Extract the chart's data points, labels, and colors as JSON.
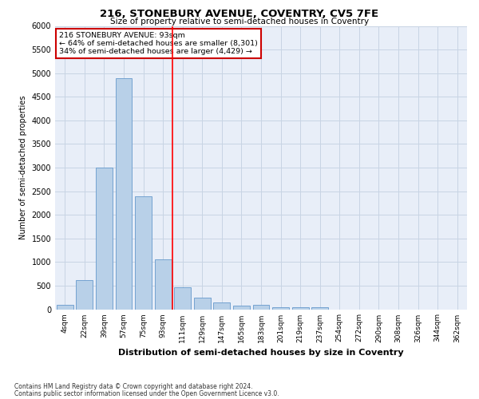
{
  "title": "216, STONEBURY AVENUE, COVENTRY, CV5 7FE",
  "subtitle": "Size of property relative to semi-detached houses in Coventry",
  "xlabel": "Distribution of semi-detached houses by size in Coventry",
  "ylabel": "Number of semi-detached properties",
  "annotation_line1": "216 STONEBURY AVENUE: 93sqm",
  "annotation_line2": "← 64% of semi-detached houses are smaller (8,301)",
  "annotation_line3": "34% of semi-detached houses are larger (4,429) →",
  "footer_line1": "Contains HM Land Registry data © Crown copyright and database right 2024.",
  "footer_line2": "Contains public sector information licensed under the Open Government Licence v3.0.",
  "categories": [
    "4sqm",
    "22sqm",
    "39sqm",
    "57sqm",
    "75sqm",
    "93sqm",
    "111sqm",
    "129sqm",
    "147sqm",
    "165sqm",
    "183sqm",
    "201sqm",
    "219sqm",
    "237sqm",
    "254sqm",
    "272sqm",
    "290sqm",
    "308sqm",
    "326sqm",
    "344sqm",
    "362sqm"
  ],
  "values": [
    100,
    620,
    3000,
    4900,
    2400,
    1050,
    460,
    240,
    150,
    80,
    100,
    50,
    40,
    50,
    0,
    0,
    0,
    0,
    0,
    0,
    0
  ],
  "bar_color": "#b8d0e8",
  "bar_edge_color": "#6699cc",
  "grid_color": "#c8d4e4",
  "background_color": "#e8eef8",
  "red_line_index": 5,
  "ylim": [
    0,
    6000
  ],
  "yticks": [
    0,
    500,
    1000,
    1500,
    2000,
    2500,
    3000,
    3500,
    4000,
    4500,
    5000,
    5500,
    6000
  ],
  "annotation_box_facecolor": "#ffffff",
  "annotation_box_edgecolor": "#cc0000",
  "title_fontsize": 9.5,
  "subtitle_fontsize": 7.5,
  "ylabel_fontsize": 7,
  "xlabel_fontsize": 8,
  "tick_fontsize": 6.5,
  "ytick_fontsize": 7,
  "footer_fontsize": 5.5,
  "annot_fontsize": 6.8
}
